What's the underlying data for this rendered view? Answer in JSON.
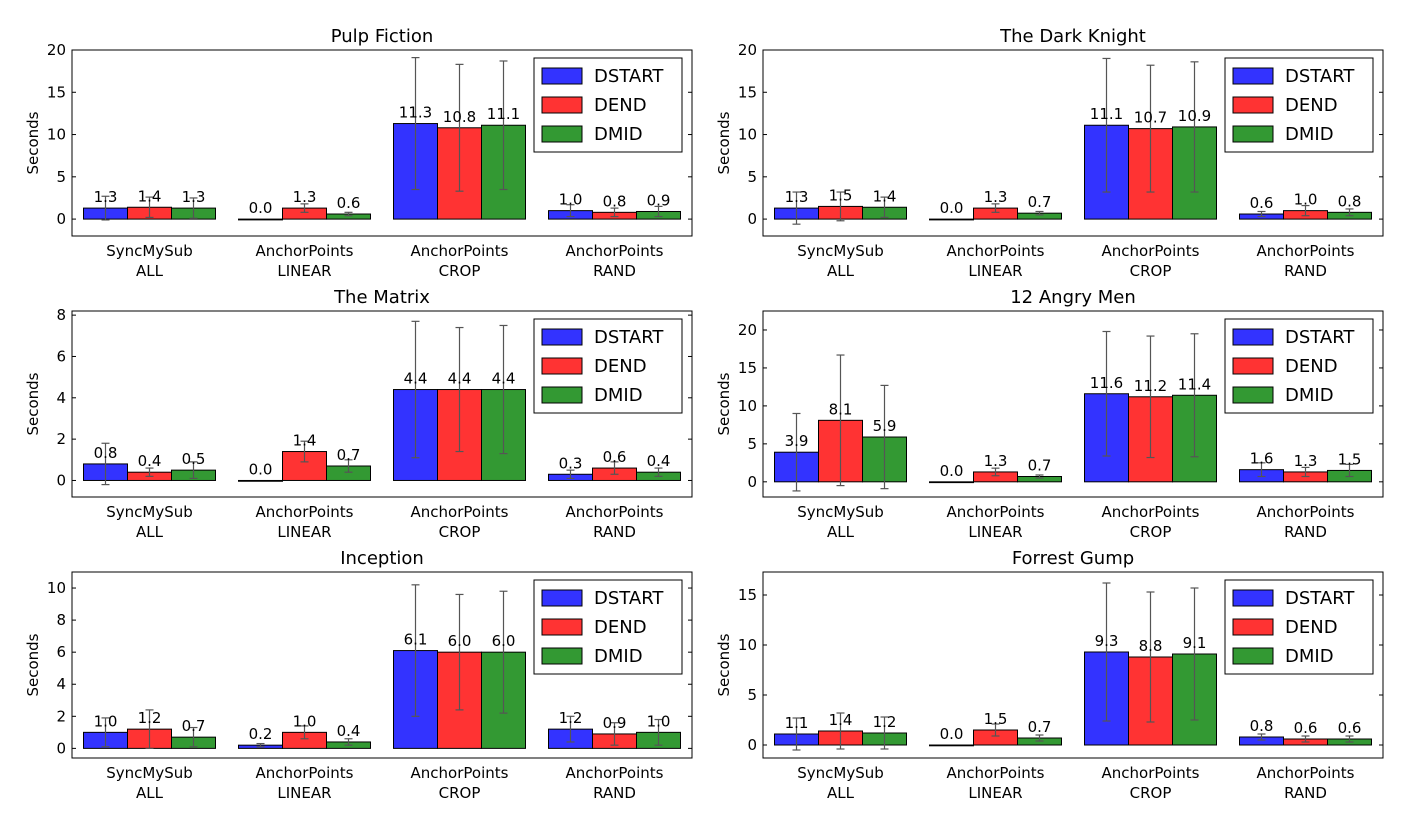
{
  "colors": {
    "DSTART": "#3333ff",
    "DEND": "#ff3333",
    "DMID": "#339933",
    "errorbar": "#555555"
  },
  "chart_data": [
    {
      "type": "bar",
      "title": "Pulp Fiction",
      "ylabel": "Seconds",
      "ylim": [
        -2,
        20
      ],
      "yticks": [
        0,
        5,
        10,
        15,
        20
      ],
      "categories": [
        [
          "SyncMySub",
          "ALL"
        ],
        [
          "AnchorPoints",
          "LINEAR"
        ],
        [
          "AnchorPoints",
          "CROP"
        ],
        [
          "AnchorPoints",
          "RAND"
        ]
      ],
      "legend": "top-right",
      "series": [
        {
          "name": "DSTART",
          "values": [
            1.3,
            0.0,
            11.3,
            1.0
          ],
          "err": [
            1.4,
            0.0,
            7.8,
            0.7
          ],
          "labels": [
            "1.3",
            "0.0",
            "11.3",
            "1.0"
          ]
        },
        {
          "name": "DEND",
          "values": [
            1.4,
            1.3,
            10.8,
            0.8
          ],
          "err": [
            1.2,
            0.5,
            7.5,
            0.5
          ],
          "labels": [
            "1.4",
            "1.3",
            "10.8",
            "0.8"
          ]
        },
        {
          "name": "DMID",
          "values": [
            1.3,
            0.6,
            11.1,
            0.9
          ],
          "err": [
            1.2,
            0.2,
            7.6,
            0.6
          ],
          "labels": [
            "1.3",
            "0.6",
            "11.1",
            "0.9"
          ]
        }
      ]
    },
    {
      "type": "bar",
      "title": "The Dark Knight",
      "ylabel": "Seconds",
      "ylim": [
        -2,
        20
      ],
      "yticks": [
        0,
        5,
        10,
        15,
        20
      ],
      "categories": [
        [
          "SyncMySub",
          "ALL"
        ],
        [
          "AnchorPoints",
          "LINEAR"
        ],
        [
          "AnchorPoints",
          "CROP"
        ],
        [
          "AnchorPoints",
          "RAND"
        ]
      ],
      "legend": "top-right",
      "series": [
        {
          "name": "DSTART",
          "values": [
            1.3,
            0.0,
            11.1,
            0.6
          ],
          "err": [
            1.9,
            0.0,
            7.9,
            0.3
          ],
          "labels": [
            "1.3",
            "0.0",
            "11.1",
            "0.6"
          ]
        },
        {
          "name": "DEND",
          "values": [
            1.5,
            1.3,
            10.7,
            1.0
          ],
          "err": [
            1.7,
            0.5,
            7.5,
            0.6
          ],
          "labels": [
            "1.5",
            "1.3",
            "10.7",
            "1.0"
          ]
        },
        {
          "name": "DMID",
          "values": [
            1.4,
            0.7,
            10.9,
            0.8
          ],
          "err": [
            1.2,
            0.2,
            7.7,
            0.4
          ],
          "labels": [
            "1.4",
            "0.7",
            "10.9",
            "0.8"
          ]
        }
      ]
    },
    {
      "type": "bar",
      "title": "The Matrix",
      "ylabel": "Seconds",
      "ylim": [
        -0.8,
        8.2
      ],
      "yticks": [
        0,
        2,
        4,
        6,
        8
      ],
      "categories": [
        [
          "SyncMySub",
          "ALL"
        ],
        [
          "AnchorPoints",
          "LINEAR"
        ],
        [
          "AnchorPoints",
          "CROP"
        ],
        [
          "AnchorPoints",
          "RAND"
        ]
      ],
      "legend": "top-right",
      "series": [
        {
          "name": "DSTART",
          "values": [
            0.8,
            0.0,
            4.4,
            0.3
          ],
          "err": [
            1.0,
            0.0,
            3.3,
            0.2
          ],
          "labels": [
            "0.8",
            "0.0",
            "4.4",
            "0.3"
          ]
        },
        {
          "name": "DEND",
          "values": [
            0.4,
            1.4,
            4.4,
            0.6
          ],
          "err": [
            0.2,
            0.5,
            3.0,
            0.3
          ],
          "labels": [
            "0.4",
            "1.4",
            "4.4",
            "0.6"
          ]
        },
        {
          "name": "DMID",
          "values": [
            0.5,
            0.7,
            4.4,
            0.4
          ],
          "err": [
            0.4,
            0.3,
            3.1,
            0.2
          ],
          "labels": [
            "0.5",
            "0.7",
            "4.4",
            "0.4"
          ]
        }
      ]
    },
    {
      "type": "bar",
      "title": "12 Angry Men",
      "ylabel": "Seconds",
      "ylim": [
        -2,
        22.5
      ],
      "yticks": [
        0,
        5,
        10,
        15,
        20
      ],
      "categories": [
        [
          "SyncMySub",
          "ALL"
        ],
        [
          "AnchorPoints",
          "LINEAR"
        ],
        [
          "AnchorPoints",
          "CROP"
        ],
        [
          "AnchorPoints",
          "RAND"
        ]
      ],
      "legend": "top-right",
      "series": [
        {
          "name": "DSTART",
          "values": [
            3.9,
            0.0,
            11.6,
            1.6
          ],
          "err": [
            5.1,
            0.0,
            8.2,
            0.9
          ],
          "labels": [
            "3.9",
            "0.0",
            "11.6",
            "1.6"
          ]
        },
        {
          "name": "DEND",
          "values": [
            8.1,
            1.3,
            11.2,
            1.3
          ],
          "err": [
            8.6,
            0.5,
            8.0,
            0.6
          ],
          "labels": [
            "8.1",
            "1.3",
            "11.2",
            "1.3"
          ]
        },
        {
          "name": "DMID",
          "values": [
            5.9,
            0.7,
            11.4,
            1.5
          ],
          "err": [
            6.8,
            0.2,
            8.1,
            0.8
          ],
          "labels": [
            "5.9",
            "0.7",
            "11.4",
            "1.5"
          ]
        }
      ]
    },
    {
      "type": "bar",
      "title": "Inception",
      "ylabel": "Seconds",
      "ylim": [
        -0.6,
        11
      ],
      "yticks": [
        0,
        2,
        4,
        6,
        8,
        10
      ],
      "categories": [
        [
          "SyncMySub",
          "ALL"
        ],
        [
          "AnchorPoints",
          "LINEAR"
        ],
        [
          "AnchorPoints",
          "CROP"
        ],
        [
          "AnchorPoints",
          "RAND"
        ]
      ],
      "legend": "top-right",
      "series": [
        {
          "name": "DSTART",
          "values": [
            1.0,
            0.2,
            6.1,
            1.2
          ],
          "err": [
            0.9,
            0.1,
            4.1,
            0.8
          ],
          "labels": [
            "1.0",
            "0.2",
            "6.1",
            "1.2"
          ]
        },
        {
          "name": "DEND",
          "values": [
            1.2,
            1.0,
            6.0,
            0.9
          ],
          "err": [
            1.2,
            0.4,
            3.6,
            0.7
          ],
          "labels": [
            "1.2",
            "1.0",
            "6.0",
            "0.9"
          ]
        },
        {
          "name": "DMID",
          "values": [
            0.7,
            0.4,
            6.0,
            1.0
          ],
          "err": [
            0.6,
            0.2,
            3.8,
            0.8
          ],
          "labels": [
            "0.7",
            "0.4",
            "6.0",
            "1.0"
          ]
        }
      ]
    },
    {
      "type": "bar",
      "title": "Forrest Gump",
      "ylabel": "Seconds",
      "ylim": [
        -1.3,
        17.3
      ],
      "yticks": [
        0,
        5,
        10,
        15
      ],
      "categories": [
        [
          "SyncMySub",
          "ALL"
        ],
        [
          "AnchorPoints",
          "LINEAR"
        ],
        [
          "AnchorPoints",
          "CROP"
        ],
        [
          "AnchorPoints",
          "RAND"
        ]
      ],
      "legend": "top-right",
      "series": [
        {
          "name": "DSTART",
          "values": [
            1.1,
            0.0,
            9.3,
            0.8
          ],
          "err": [
            1.6,
            0.0,
            6.9,
            0.3
          ],
          "labels": [
            "1.1",
            "0.0",
            "9.3",
            "0.8"
          ]
        },
        {
          "name": "DEND",
          "values": [
            1.4,
            1.5,
            8.8,
            0.6
          ],
          "err": [
            1.8,
            0.6,
            6.5,
            0.3
          ],
          "labels": [
            "1.4",
            "1.5",
            "8.8",
            "0.6"
          ]
        },
        {
          "name": "DMID",
          "values": [
            1.2,
            0.7,
            9.1,
            0.6
          ],
          "err": [
            1.6,
            0.3,
            6.6,
            0.3
          ],
          "labels": [
            "1.2",
            "0.7",
            "9.1",
            "0.6"
          ]
        }
      ]
    }
  ]
}
